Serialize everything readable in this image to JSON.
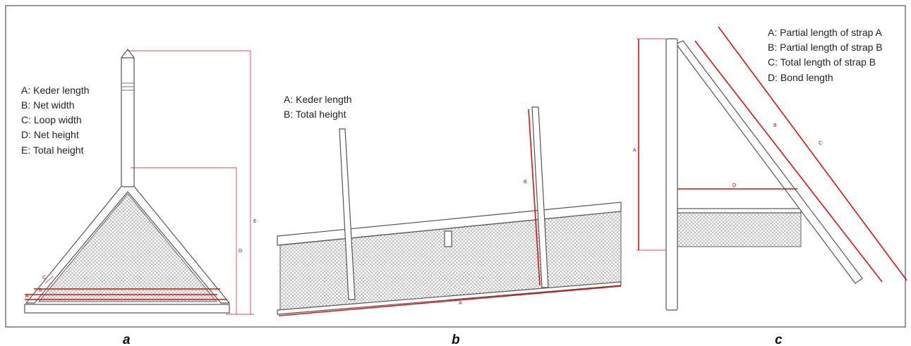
{
  "panels": [
    {
      "label": "a",
      "legend": [
        "A: Keder length",
        "B: Net width",
        "C: Loop width",
        "D: Net height",
        "E: Total height"
      ],
      "dimension_labels": [
        "A",
        "B",
        "C",
        "D",
        "E"
      ]
    },
    {
      "label": "b",
      "legend": [
        "A: Keder length",
        "B: Total height"
      ],
      "dimension_labels": [
        "A",
        "B"
      ]
    },
    {
      "label": "c",
      "legend": [
        "A: Partial length of strap A",
        "B: Partial length of strap B",
        "C: Total length of strap B",
        "D: Bond length"
      ],
      "dimension_labels": [
        "A",
        "B",
        "C",
        "D"
      ]
    }
  ]
}
